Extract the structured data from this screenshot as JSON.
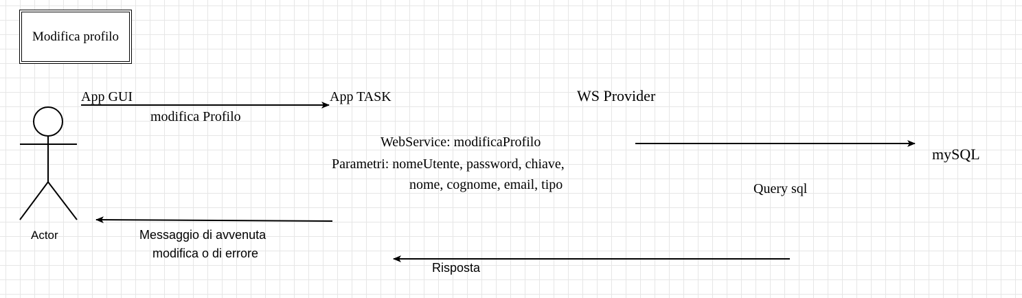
{
  "frame": {
    "title": "Modifica profilo"
  },
  "actor": {
    "label": "Actor"
  },
  "participants": {
    "app_gui": "App GUI",
    "app_task": "App TASK",
    "ws_provider": "WS Provider",
    "mysql": "mySQL"
  },
  "messages": {
    "modifica_profilo": "modifica Profilo",
    "webservice_line1": "WebService: modificaProfilo",
    "webservice_line2": "Parametri:  nomeUtente, password, chiave,",
    "webservice_line3": "nome, cognome, email, tipo",
    "query_sql": "Query sql",
    "risposta": "Risposta",
    "esito_line1": "Messaggio di avvenuta",
    "esito_line2": "modifica o di errore"
  }
}
